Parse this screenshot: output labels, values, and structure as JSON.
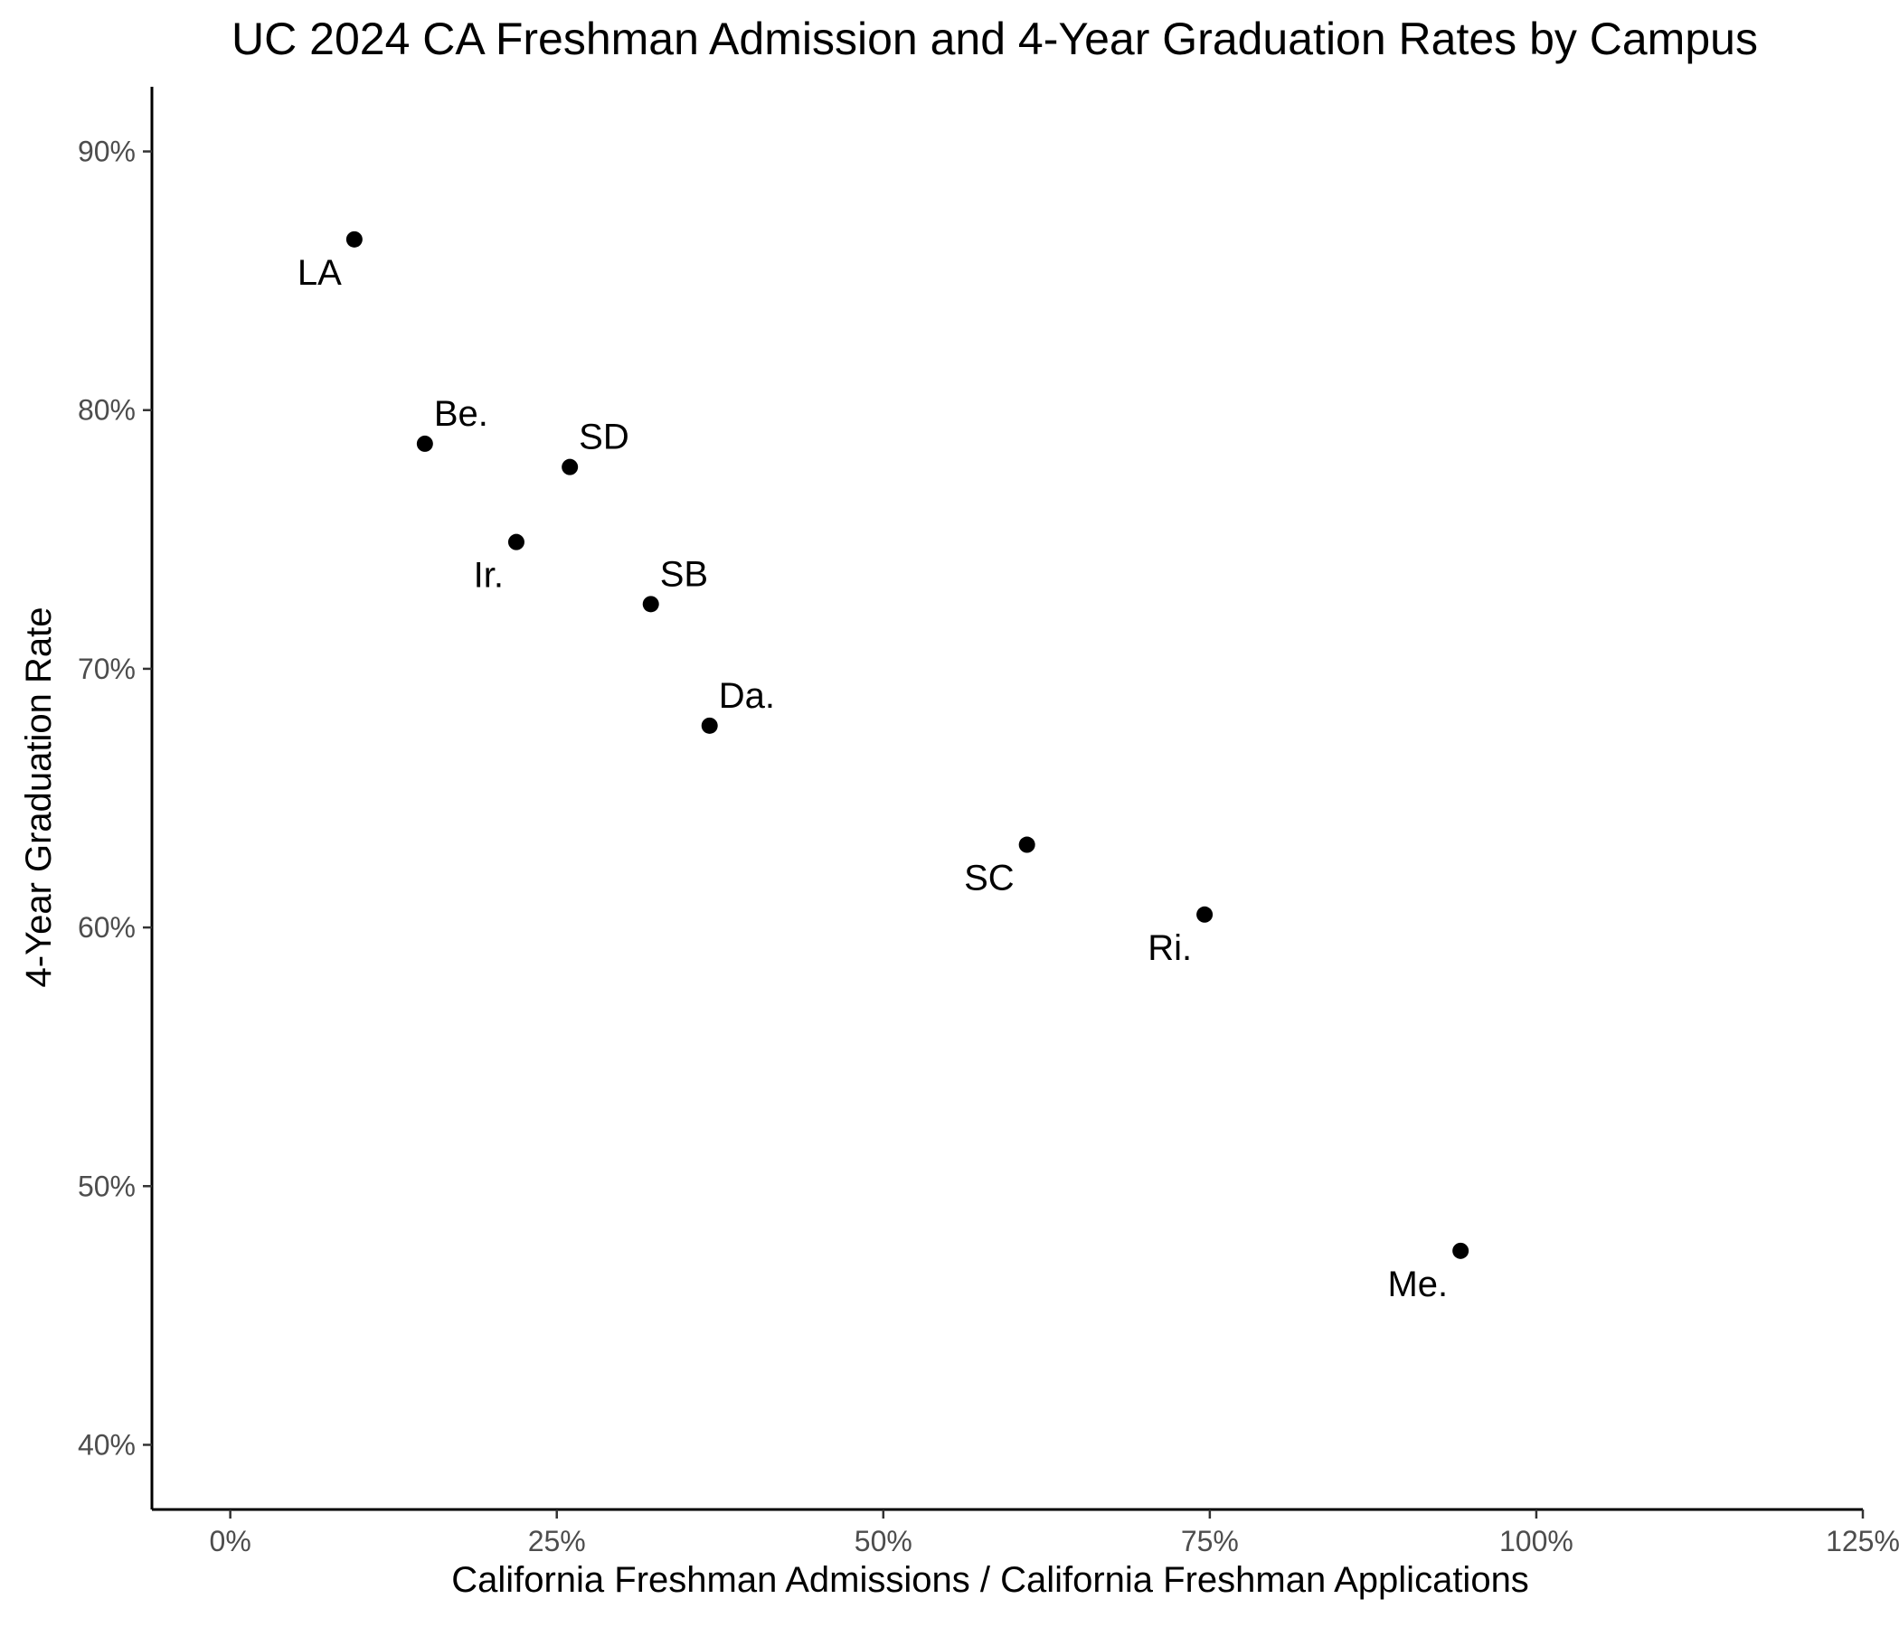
{
  "chart_data": {
    "type": "scatter",
    "title": "UC 2024 CA Freshman Admission and 4-Year Graduation Rates by Campus",
    "xlabel": "California Freshman Admissions / California Freshman Applications",
    "ylabel": "4-Year Graduation Rate",
    "xlim": [
      -0.06,
      1.25
    ],
    "ylim": [
      0.375,
      0.925
    ],
    "x_ticks": [
      0,
      0.25,
      0.5,
      0.75,
      1.0,
      1.25
    ],
    "x_tick_labels": [
      "0%",
      "25%",
      "50%",
      "75%",
      "100%",
      "125%"
    ],
    "y_ticks": [
      0.4,
      0.5,
      0.6,
      0.7,
      0.8,
      0.9
    ],
    "y_tick_labels": [
      "40%",
      "50%",
      "60%",
      "70%",
      "80%",
      "90%"
    ],
    "grid": false,
    "legend": "none",
    "point_color": "#000000",
    "points": [
      {
        "label": "LA",
        "x": 0.095,
        "y": 0.866,
        "label_pos": "bottom-left"
      },
      {
        "label": "Be.",
        "x": 0.149,
        "y": 0.787,
        "label_pos": "top-right"
      },
      {
        "label": "SD",
        "x": 0.26,
        "y": 0.778,
        "label_pos": "top-right"
      },
      {
        "label": "Ir.",
        "x": 0.219,
        "y": 0.749,
        "label_pos": "bottom-left"
      },
      {
        "label": "SB",
        "x": 0.322,
        "y": 0.725,
        "label_pos": "top-right"
      },
      {
        "label": "Da.",
        "x": 0.367,
        "y": 0.678,
        "label_pos": "top-right"
      },
      {
        "label": "SC",
        "x": 0.61,
        "y": 0.632,
        "label_pos": "bottom-left"
      },
      {
        "label": "Ri.",
        "x": 0.746,
        "y": 0.605,
        "label_pos": "bottom-left"
      },
      {
        "label": "Me.",
        "x": 0.942,
        "y": 0.475,
        "label_pos": "bottom-left"
      }
    ]
  }
}
